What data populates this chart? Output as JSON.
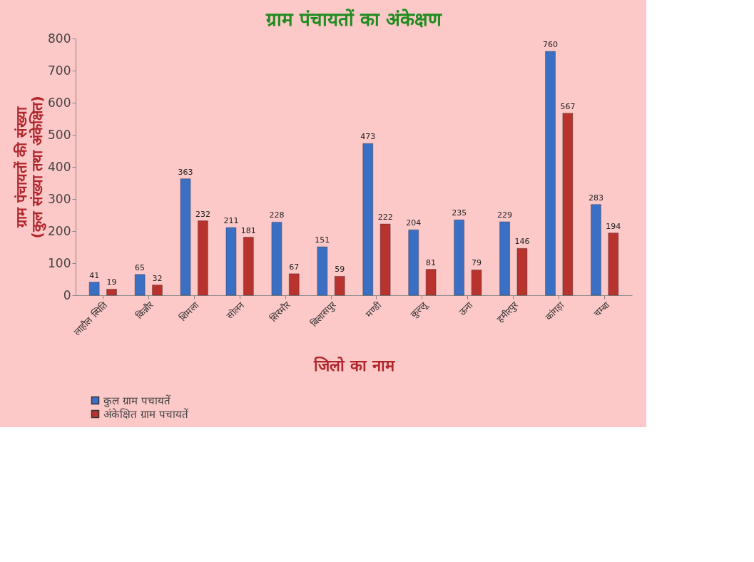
{
  "chart_data": {
    "type": "bar",
    "title": "ग्राम पंचायतों का अंकेक्षण",
    "xlabel": "जिलो का नाम",
    "ylabel": "ग्राम पंचायतों  की संख्या\n(कुल संख्या तथा अंकेक्षित)",
    "categories": [
      "लाहौल स्पिति",
      "किन्नौर",
      "शिमला",
      "सोलन",
      "सिरमौर",
      "बिलासपुर",
      "मण्डी",
      "कुल्लू",
      "ऊना",
      "हमीरपुर",
      "कांगड़ा",
      "चम्बा"
    ],
    "series": [
      {
        "name": "कुल ग्राम पचायतें",
        "color": "#3a6fc4",
        "values": [
          41,
          65,
          363,
          211,
          228,
          151,
          473,
          204,
          235,
          229,
          760,
          283
        ]
      },
      {
        "name": "अंकेक्षित ग्राम पचायतें",
        "color": "#b8332e",
        "values": [
          19,
          32,
          232,
          181,
          67,
          59,
          222,
          81,
          79,
          146,
          567,
          194
        ]
      }
    ],
    "ylim": [
      0,
      800
    ],
    "yticks": [
      0,
      100,
      200,
      300,
      400,
      500,
      600,
      700,
      800
    ],
    "grid": false,
    "legend": "bottom left",
    "data_labels": true
  }
}
